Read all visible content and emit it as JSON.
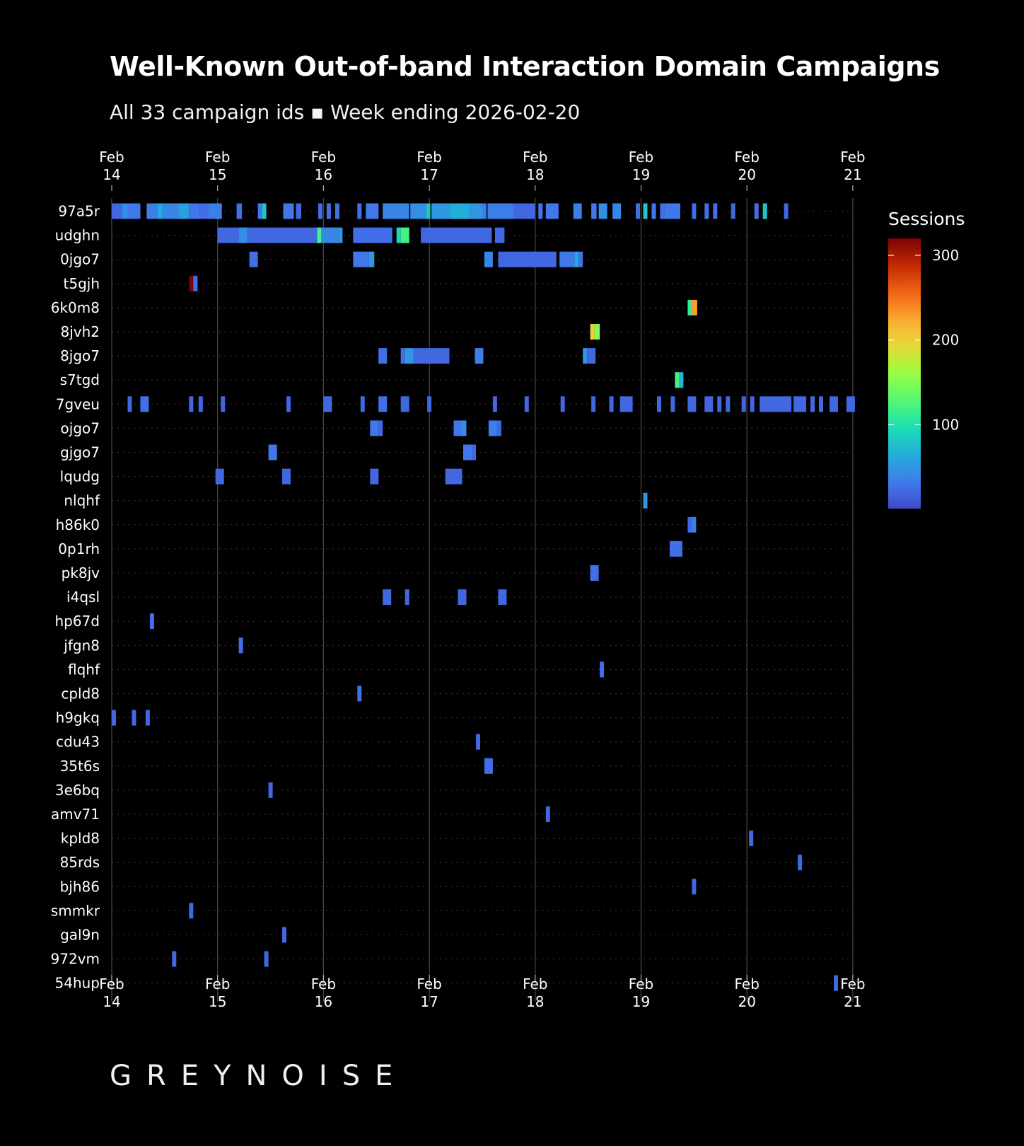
{
  "title": "Well-Known Out-of-band Interaction Domain Campaigns",
  "subtitle": "All 33 campaign ids ▪ Week ending 2026-02-20",
  "brand": "GREYNOISE",
  "colors": {
    "background": "#000000",
    "grid": "#444444",
    "text": "#ffffff",
    "colormap": "turbo"
  },
  "chart_data": {
    "type": "heatmap",
    "title": "Well-Known Out-of-band Interaction Domain Campaigns",
    "subtitle": "All 33 campaign ids ▪ Week ending 2026-02-20",
    "x_axis": {
      "type": "time",
      "range": [
        "2026-02-14",
        "2026-02-21"
      ],
      "ticks": [
        {
          "month": "Feb",
          "day": "14"
        },
        {
          "month": "Feb",
          "day": "15"
        },
        {
          "month": "Feb",
          "day": "16"
        },
        {
          "month": "Feb",
          "day": "17"
        },
        {
          "month": "Feb",
          "day": "18"
        },
        {
          "month": "Feb",
          "day": "19"
        },
        {
          "month": "Feb",
          "day": "20"
        },
        {
          "month": "Feb",
          "day": "21"
        }
      ],
      "top_and_bottom": true
    },
    "colorbar": {
      "label": "Sessions",
      "range": [
        1,
        320
      ],
      "ticks": [
        "100",
        "200",
        "300"
      ],
      "tick_values": [
        100,
        200,
        300
      ]
    },
    "rows": [
      {
        "id": "97a5r",
        "cells": [
          [
            0.0,
            0.1,
            20
          ],
          [
            0.1,
            0.05,
            45
          ],
          [
            0.15,
            0.12,
            30
          ],
          [
            0.33,
            0.1,
            35
          ],
          [
            0.43,
            0.05,
            60
          ],
          [
            0.48,
            0.15,
            40
          ],
          [
            0.63,
            0.1,
            55
          ],
          [
            0.73,
            0.1,
            30
          ],
          [
            0.83,
            0.1,
            25
          ],
          [
            0.92,
            0.12,
            35
          ],
          [
            1.18,
            0.05,
            25
          ],
          [
            1.38,
            0.04,
            30
          ],
          [
            1.42,
            0.04,
            80
          ],
          [
            1.62,
            0.1,
            30
          ],
          [
            1.74,
            0.05,
            20
          ],
          [
            1.95,
            0.04,
            25
          ],
          [
            2.03,
            0.04,
            25
          ],
          [
            2.11,
            0.04,
            25
          ],
          [
            2.32,
            0.04,
            25
          ],
          [
            2.4,
            0.12,
            30
          ],
          [
            2.56,
            0.25,
            40
          ],
          [
            2.82,
            0.15,
            45
          ],
          [
            2.97,
            0.04,
            80
          ],
          [
            3.02,
            0.18,
            50
          ],
          [
            3.2,
            0.18,
            65
          ],
          [
            3.38,
            0.12,
            50
          ],
          [
            3.5,
            0.04,
            35
          ],
          [
            3.55,
            0.25,
            35
          ],
          [
            3.8,
            0.2,
            20
          ],
          [
            4.03,
            0.04,
            30
          ],
          [
            4.1,
            0.12,
            30
          ],
          [
            4.36,
            0.08,
            35
          ],
          [
            4.53,
            0.05,
            30
          ],
          [
            4.6,
            0.08,
            45
          ],
          [
            4.73,
            0.08,
            40
          ],
          [
            4.95,
            0.04,
            25
          ],
          [
            5.02,
            0.04,
            80
          ],
          [
            5.1,
            0.04,
            30
          ],
          [
            5.18,
            0.04,
            25
          ],
          [
            5.22,
            0.15,
            30
          ],
          [
            5.48,
            0.04,
            25
          ],
          [
            5.6,
            0.04,
            25
          ],
          [
            5.68,
            0.04,
            25
          ],
          [
            5.85,
            0.04,
            20
          ],
          [
            6.07,
            0.04,
            25
          ],
          [
            6.15,
            0.04,
            80
          ],
          [
            6.35,
            0.04,
            20
          ]
        ]
      },
      {
        "id": "udghn",
        "cells": [
          [
            1.0,
            0.2,
            20
          ],
          [
            1.2,
            0.08,
            45
          ],
          [
            1.28,
            0.66,
            20
          ],
          [
            1.94,
            0.04,
            120
          ],
          [
            1.98,
            0.16,
            40
          ],
          [
            2.14,
            0.04,
            50
          ],
          [
            2.28,
            0.37,
            25
          ],
          [
            2.69,
            0.04,
            90
          ],
          [
            2.73,
            0.08,
            120
          ],
          [
            2.92,
            0.67,
            20
          ],
          [
            3.62,
            0.09,
            20
          ]
        ]
      },
      {
        "id": "0jgo7",
        "cells": [
          [
            1.3,
            0.08,
            25
          ],
          [
            2.28,
            0.15,
            30
          ],
          [
            2.43,
            0.05,
            50
          ],
          [
            3.52,
            0.08,
            40
          ],
          [
            3.65,
            0.55,
            20
          ],
          [
            4.23,
            0.14,
            30
          ],
          [
            4.37,
            0.04,
            60
          ],
          [
            4.41,
            0.04,
            25
          ]
        ]
      },
      {
        "id": "t5gjh",
        "cells": [
          [
            0.73,
            0.04,
            320
          ],
          [
            0.77,
            0.04,
            25
          ]
        ]
      },
      {
        "id": "6k0m8",
        "cells": [
          [
            5.44,
            0.04,
            110
          ],
          [
            5.48,
            0.05,
            230
          ]
        ]
      },
      {
        "id": "8jvh2",
        "cells": [
          [
            4.52,
            0.04,
            200
          ],
          [
            4.56,
            0.05,
            150
          ]
        ]
      },
      {
        "id": "8jgo7",
        "cells": [
          [
            2.52,
            0.08,
            25
          ],
          [
            2.73,
            0.04,
            25
          ],
          [
            2.77,
            0.08,
            50
          ],
          [
            2.85,
            0.34,
            20
          ],
          [
            3.43,
            0.08,
            35
          ],
          [
            4.45,
            0.04,
            50
          ],
          [
            4.49,
            0.08,
            20
          ]
        ]
      },
      {
        "id": "s7tgd",
        "cells": [
          [
            5.32,
            0.04,
            120
          ],
          [
            5.36,
            0.04,
            70
          ]
        ]
      },
      {
        "id": "7gveu",
        "cells": [
          [
            0.15,
            0.04,
            20
          ],
          [
            0.27,
            0.08,
            25
          ],
          [
            0.73,
            0.04,
            20
          ],
          [
            0.82,
            0.04,
            20
          ],
          [
            1.03,
            0.04,
            20
          ],
          [
            1.65,
            0.04,
            20
          ],
          [
            2.0,
            0.08,
            20
          ],
          [
            2.35,
            0.04,
            20
          ],
          [
            2.52,
            0.08,
            25
          ],
          [
            2.73,
            0.08,
            20
          ],
          [
            2.98,
            0.04,
            20
          ],
          [
            3.6,
            0.04,
            20
          ],
          [
            3.9,
            0.04,
            20
          ],
          [
            4.24,
            0.04,
            20
          ],
          [
            4.53,
            0.04,
            20
          ],
          [
            4.7,
            0.04,
            20
          ],
          [
            4.8,
            0.12,
            20
          ],
          [
            5.15,
            0.04,
            20
          ],
          [
            5.28,
            0.04,
            20
          ],
          [
            5.44,
            0.08,
            20
          ],
          [
            5.6,
            0.08,
            20
          ],
          [
            5.72,
            0.04,
            20
          ],
          [
            5.8,
            0.04,
            20
          ],
          [
            5.95,
            0.04,
            20
          ],
          [
            6.03,
            0.04,
            20
          ],
          [
            6.12,
            0.3,
            20
          ],
          [
            6.44,
            0.12,
            20
          ],
          [
            6.6,
            0.04,
            20
          ],
          [
            6.68,
            0.04,
            20
          ],
          [
            6.78,
            0.08,
            20
          ],
          [
            6.94,
            0.08,
            20
          ]
        ]
      },
      {
        "id": "ojgo7",
        "cells": [
          [
            2.44,
            0.08,
            30
          ],
          [
            2.52,
            0.04,
            20
          ],
          [
            3.23,
            0.08,
            30
          ],
          [
            3.31,
            0.04,
            45
          ],
          [
            3.56,
            0.08,
            35
          ],
          [
            3.64,
            0.04,
            20
          ]
        ]
      },
      {
        "id": "gjgo7",
        "cells": [
          [
            1.48,
            0.08,
            30
          ],
          [
            3.32,
            0.08,
            30
          ],
          [
            3.4,
            0.04,
            20
          ]
        ]
      },
      {
        "id": "lqudg",
        "cells": [
          [
            0.98,
            0.08,
            20
          ],
          [
            1.61,
            0.08,
            20
          ],
          [
            2.44,
            0.08,
            20
          ],
          [
            3.15,
            0.12,
            20
          ],
          [
            3.27,
            0.04,
            20
          ]
        ]
      },
      {
        "id": "nlqhf",
        "cells": [
          [
            5.02,
            0.04,
            50
          ]
        ]
      },
      {
        "id": "h86k0",
        "cells": [
          [
            5.44,
            0.04,
            20
          ],
          [
            5.48,
            0.04,
            35
          ]
        ]
      },
      {
        "id": "0p1rh",
        "cells": [
          [
            5.27,
            0.12,
            25
          ]
        ]
      },
      {
        "id": "pk8jv",
        "cells": [
          [
            4.52,
            0.08,
            25
          ]
        ]
      },
      {
        "id": "i4qsl",
        "cells": [
          [
            2.56,
            0.08,
            20
          ],
          [
            2.77,
            0.04,
            20
          ],
          [
            3.27,
            0.08,
            20
          ],
          [
            3.65,
            0.08,
            20
          ]
        ]
      },
      {
        "id": "hp67d",
        "cells": [
          [
            0.36,
            0.04,
            25
          ]
        ]
      },
      {
        "id": "jfgn8",
        "cells": [
          [
            1.2,
            0.04,
            25
          ]
        ]
      },
      {
        "id": "flqhf",
        "cells": [
          [
            4.61,
            0.04,
            25
          ]
        ]
      },
      {
        "id": "cpld8",
        "cells": [
          [
            2.32,
            0.04,
            25
          ]
        ]
      },
      {
        "id": "h9gkq",
        "cells": [
          [
            0.0,
            0.04,
            20
          ],
          [
            0.19,
            0.04,
            20
          ],
          [
            0.32,
            0.04,
            20
          ]
        ]
      },
      {
        "id": "cdu43",
        "cells": [
          [
            3.44,
            0.04,
            20
          ]
        ]
      },
      {
        "id": "35t6s",
        "cells": [
          [
            3.52,
            0.08,
            25
          ]
        ]
      },
      {
        "id": "3e6bq",
        "cells": [
          [
            1.48,
            0.04,
            20
          ]
        ]
      },
      {
        "id": "amv71",
        "cells": [
          [
            4.1,
            0.04,
            20
          ]
        ]
      },
      {
        "id": "kpld8",
        "cells": [
          [
            6.02,
            0.04,
            20
          ]
        ]
      },
      {
        "id": "85rds",
        "cells": [
          [
            6.48,
            0.04,
            20
          ]
        ]
      },
      {
        "id": "bjh86",
        "cells": [
          [
            5.48,
            0.04,
            20
          ]
        ]
      },
      {
        "id": "smmkr",
        "cells": [
          [
            0.73,
            0.04,
            20
          ]
        ]
      },
      {
        "id": "gal9n",
        "cells": [
          [
            1.61,
            0.04,
            20
          ]
        ]
      },
      {
        "id": "972vm",
        "cells": [
          [
            0.57,
            0.04,
            20
          ],
          [
            1.44,
            0.04,
            20
          ]
        ]
      },
      {
        "id": "54hup",
        "cells": [
          [
            6.82,
            0.04,
            20
          ]
        ]
      }
    ]
  }
}
